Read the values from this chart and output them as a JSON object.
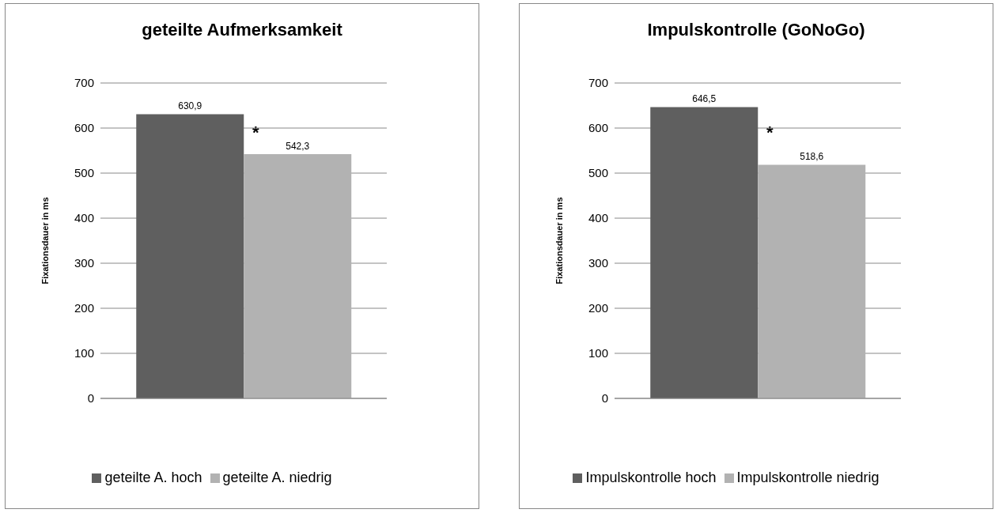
{
  "chart_data": [
    {
      "type": "bar",
      "title": "geteilte Aufmerksamkeit",
      "ylabel": "Fixationsdauer in ms",
      "categories": [
        null
      ],
      "series": [
        {
          "name": "geteilte A. hoch",
          "color": "#5f5f5f",
          "values": [
            630.9
          ],
          "value_labels": [
            "630,9"
          ]
        },
        {
          "name": "geteilte A. niedrig",
          "color": "#b2b2b2",
          "values": [
            542.3
          ],
          "value_labels": [
            "542,3"
          ]
        }
      ],
      "ylim": [
        0,
        700
      ],
      "yticks": [
        0,
        100,
        200,
        300,
        400,
        500,
        600,
        700
      ],
      "grid": "y",
      "legend": "bottom",
      "annotations": [
        "*"
      ]
    },
    {
      "type": "bar",
      "title": "Impulskontrolle (GoNoGo)",
      "ylabel": "Fixationsdauer in ms",
      "categories": [
        null
      ],
      "series": [
        {
          "name": "Impulskontrolle hoch",
          "color": "#5f5f5f",
          "values": [
            646.5
          ],
          "value_labels": [
            "646,5"
          ]
        },
        {
          "name": "Impulskontrolle niedrig",
          "color": "#b2b2b2",
          "values": [
            518.6
          ],
          "value_labels": [
            "518,6"
          ]
        }
      ],
      "ylim": [
        0,
        700
      ],
      "yticks": [
        0,
        100,
        200,
        300,
        400,
        500,
        600,
        700
      ],
      "grid": "y",
      "legend": "bottom",
      "annotations": [
        "*"
      ]
    }
  ]
}
